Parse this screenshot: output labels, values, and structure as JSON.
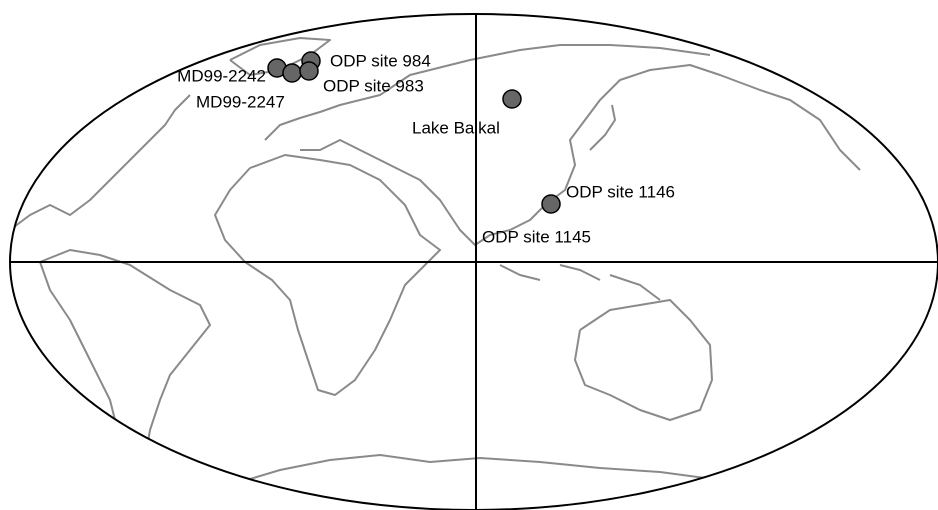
{
  "sites": [
    {
      "label": "MD99-2242"
    },
    {
      "label": "MD99-2247"
    },
    {
      "label": "ODP site 984"
    },
    {
      "label": "ODP site 983"
    },
    {
      "label": "Lake Baikal"
    },
    {
      "label": "ODP site 1146"
    },
    {
      "label": "ODP site 1145"
    }
  ]
}
